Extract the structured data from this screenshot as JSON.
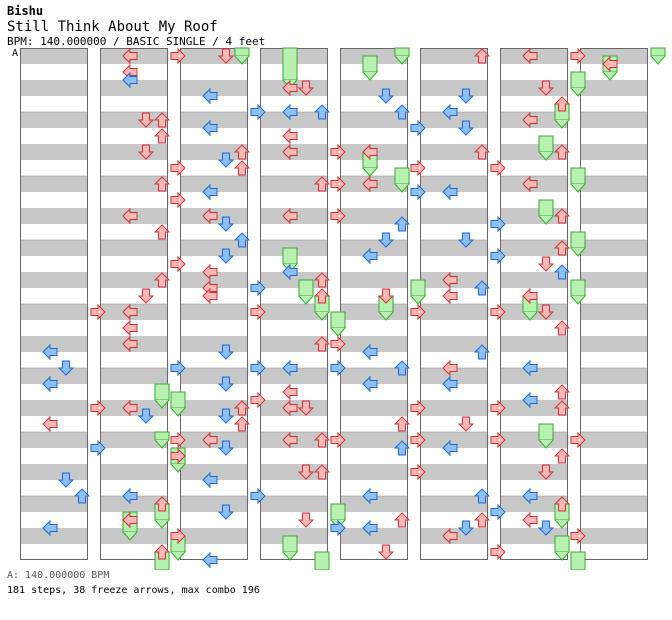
{
  "header": {
    "artist": "Bishu",
    "title": "Still Think About My Roof",
    "info": "BPM: 140.000000 / BASIC SINGLE / 4 feet",
    "bpm_marker": "A"
  },
  "footer": {
    "bpm_line": "A: 140.000000 BPM",
    "stats_line": "181 steps, 38 freeze arrows, max combo 196"
  },
  "colors": {
    "stripe": "#c8c8c8",
    "border": "#666666",
    "red_fill": "#f8b8b8",
    "red_stroke": "#cc3333",
    "blue_fill": "#8cc0f8",
    "blue_stroke": "#2266cc",
    "freeze_fill": "#b8f0b0",
    "freeze_stroke": "#33aa33"
  },
  "chart_data": {
    "type": "step chart",
    "arrow_directions": [
      "left",
      "down",
      "up",
      "right"
    ]
  }
}
